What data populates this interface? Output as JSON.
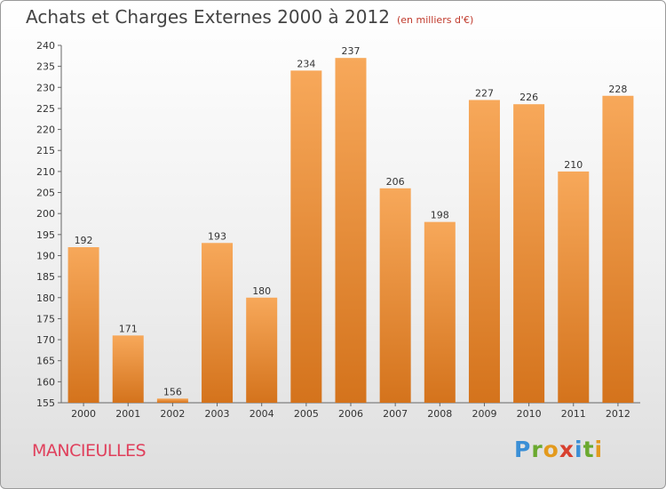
{
  "title": "Achats et Charges Externes 2000 à 2012",
  "subtitle": "(en milliers d'€)",
  "commune": "MANCIEULLES",
  "logo": {
    "letters": [
      "P",
      "r",
      "o",
      "x",
      "i",
      "t",
      "i"
    ],
    "colors": [
      "#3b8fd6",
      "#6aa92f",
      "#e39a1d",
      "#d8402f",
      "#3b8fd6",
      "#6aa92f",
      "#e39a1d"
    ]
  },
  "colors": {
    "bar_top": "#f7a85a",
    "bar_bottom": "#d4731c",
    "text": "#444444",
    "commune": "#e0405c"
  },
  "chart_data": {
    "type": "bar",
    "categories": [
      "2000",
      "2001",
      "2002",
      "2003",
      "2004",
      "2005",
      "2006",
      "2007",
      "2008",
      "2009",
      "2010",
      "2011",
      "2012"
    ],
    "values": [
      192,
      171,
      156,
      193,
      180,
      234,
      237,
      206,
      198,
      227,
      226,
      210,
      228
    ],
    "ylim": [
      155,
      240
    ],
    "yticks": [
      155,
      160,
      165,
      170,
      175,
      180,
      185,
      190,
      195,
      200,
      205,
      210,
      215,
      220,
      225,
      230,
      235,
      240
    ],
    "grid": false
  }
}
